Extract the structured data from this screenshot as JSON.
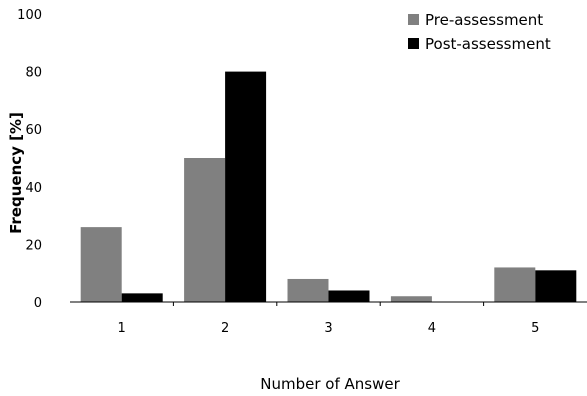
{
  "chart_data": {
    "type": "bar",
    "title": "",
    "xlabel": "Number of Answer",
    "ylabel": "Frequency [%]",
    "ylim": [
      0,
      100
    ],
    "yticks": [
      0,
      20,
      40,
      60,
      80,
      100
    ],
    "grid": false,
    "legend_position": "top-right",
    "categories": [
      "1",
      "2",
      "3",
      "4",
      "5"
    ],
    "series": [
      {
        "name": "Pre-assessment",
        "color": "#808080",
        "values": [
          26,
          50,
          8,
          2,
          12
        ]
      },
      {
        "name": "Post-assessment",
        "color": "#000000",
        "values": [
          3,
          80,
          4,
          0,
          11
        ]
      }
    ]
  }
}
